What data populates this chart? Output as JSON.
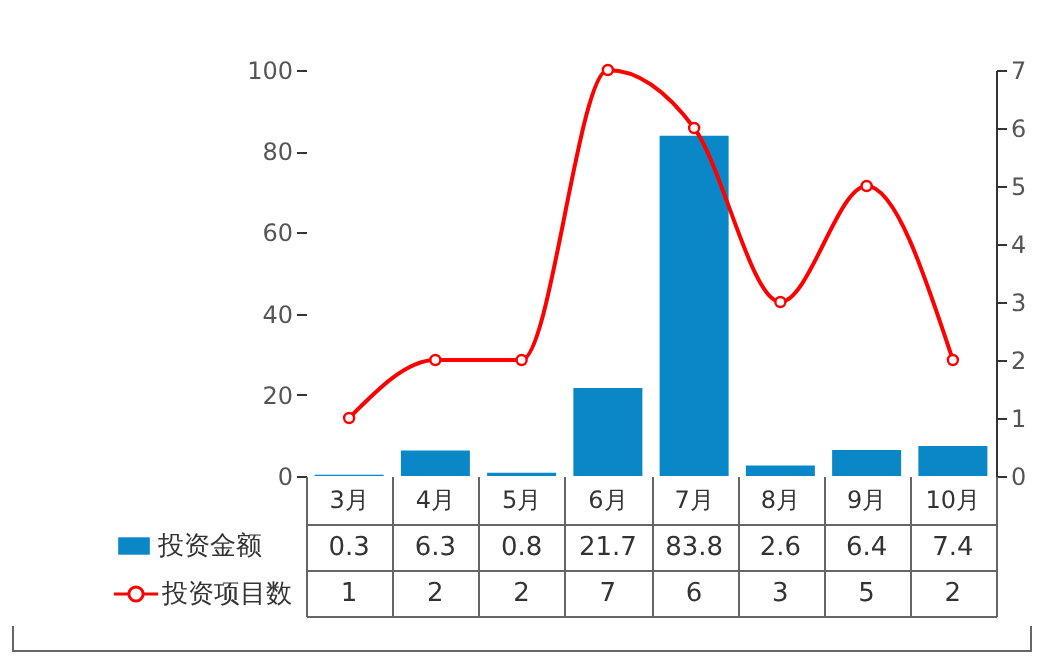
{
  "chart_data": {
    "type": "bar",
    "categories": [
      "3月",
      "4月",
      "5月",
      "6月",
      "7月",
      "8月",
      "9月",
      "10月"
    ],
    "series": [
      {
        "name": "投资金额",
        "color": "#0a87c6",
        "values": [
          0.3,
          6.3,
          0.8,
          21.7,
          83.8,
          2.6,
          6.4,
          7.4
        ]
      },
      {
        "name": "投资项目数",
        "type": "line",
        "axis": "y2",
        "color": "#ff0000",
        "marker": "circle",
        "values": [
          1,
          2,
          2,
          7,
          6,
          3,
          5,
          2
        ]
      }
    ],
    "ylim": [
      0,
      100
    ],
    "yticks": [
      0,
      20,
      40,
      60,
      80,
      100
    ],
    "y2lim": [
      0,
      7
    ],
    "y2ticks": [
      0,
      1,
      2,
      3,
      4,
      5,
      6,
      7
    ],
    "data_labels": true,
    "legend": "bottom left",
    "grid": false
  }
}
